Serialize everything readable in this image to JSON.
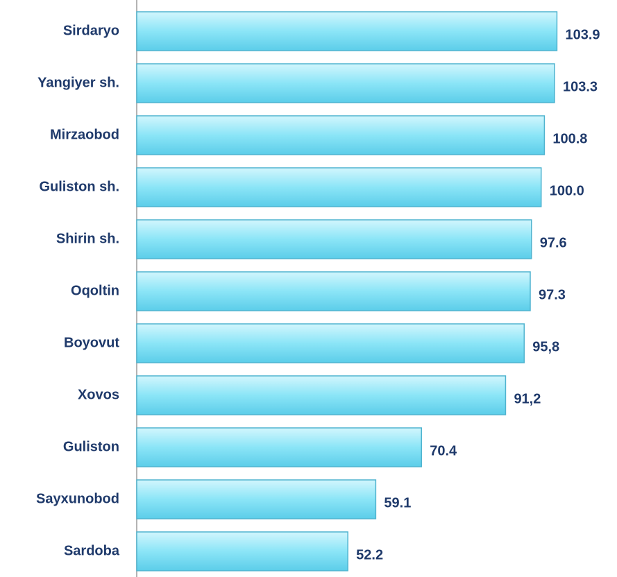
{
  "chart_data": {
    "type": "barh",
    "categories": [
      "Sirdaryo",
      "Yangiyer sh.",
      "Mirzaobod",
      "Guliston sh.",
      "Shirin sh.",
      "Oqoltin",
      "Boyovut",
      "Xovos",
      "Guliston",
      "Sayxunobod",
      "Sardoba"
    ],
    "values": [
      103.9,
      103.3,
      100.8,
      100.0,
      97.6,
      97.3,
      95.8,
      91.2,
      70.4,
      59.1,
      52.2
    ],
    "value_labels": [
      "103.9",
      "103.3",
      "100.8",
      "100.0",
      "97.6",
      "97.3",
      "95,8",
      "91,2",
      "70.4",
      "59.1",
      "52.2"
    ],
    "color": "#6fdaf2",
    "xlim": [
      0,
      110
    ]
  }
}
